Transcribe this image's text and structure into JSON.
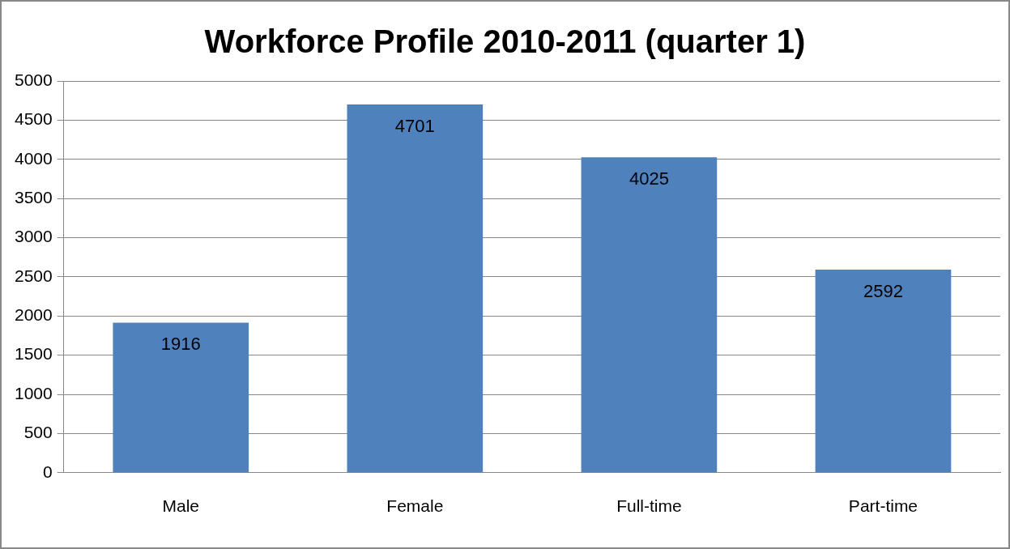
{
  "chart_data": {
    "type": "bar",
    "title": "Workforce Profile 2010-2011 (quarter 1)",
    "categories": [
      "Male",
      "Female",
      "Full-time",
      "Part-time"
    ],
    "values": [
      1916,
      4701,
      4025,
      2592
    ],
    "color": "#4f81bd",
    "ylim": [
      0,
      5000
    ],
    "yticks": [
      0,
      500,
      1000,
      1500,
      2000,
      2500,
      3000,
      3500,
      4000,
      4500,
      5000
    ],
    "grid": "y",
    "legend": false,
    "data_labels": true
  }
}
